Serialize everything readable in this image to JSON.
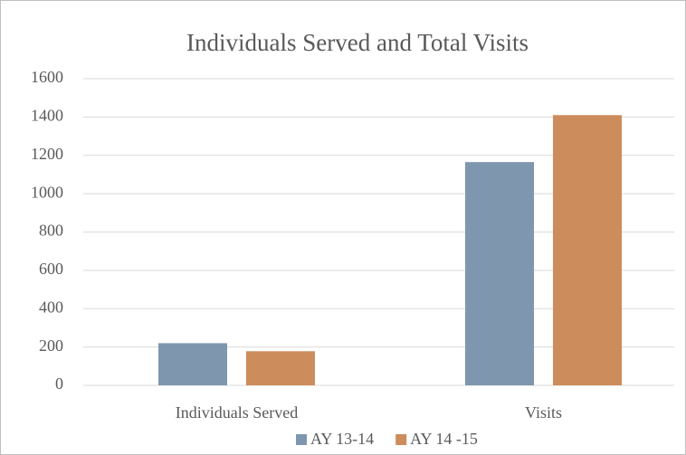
{
  "chart_data": {
    "type": "bar",
    "title": "Individuals Served and Total Visits",
    "categories": [
      "Individuals Served",
      "Visits"
    ],
    "series": [
      {
        "name": "AY 13-14",
        "color": "#7f97ae",
        "values": [
          220,
          1165
        ]
      },
      {
        "name": "AY 14 -15",
        "color": "#cd8c5c",
        "values": [
          178,
          1410
        ]
      }
    ],
    "ylim": [
      0,
      1600
    ],
    "yticks": [
      0,
      200,
      400,
      600,
      800,
      1000,
      1200,
      1400,
      1600
    ],
    "grid": true,
    "legend": "bottom"
  }
}
